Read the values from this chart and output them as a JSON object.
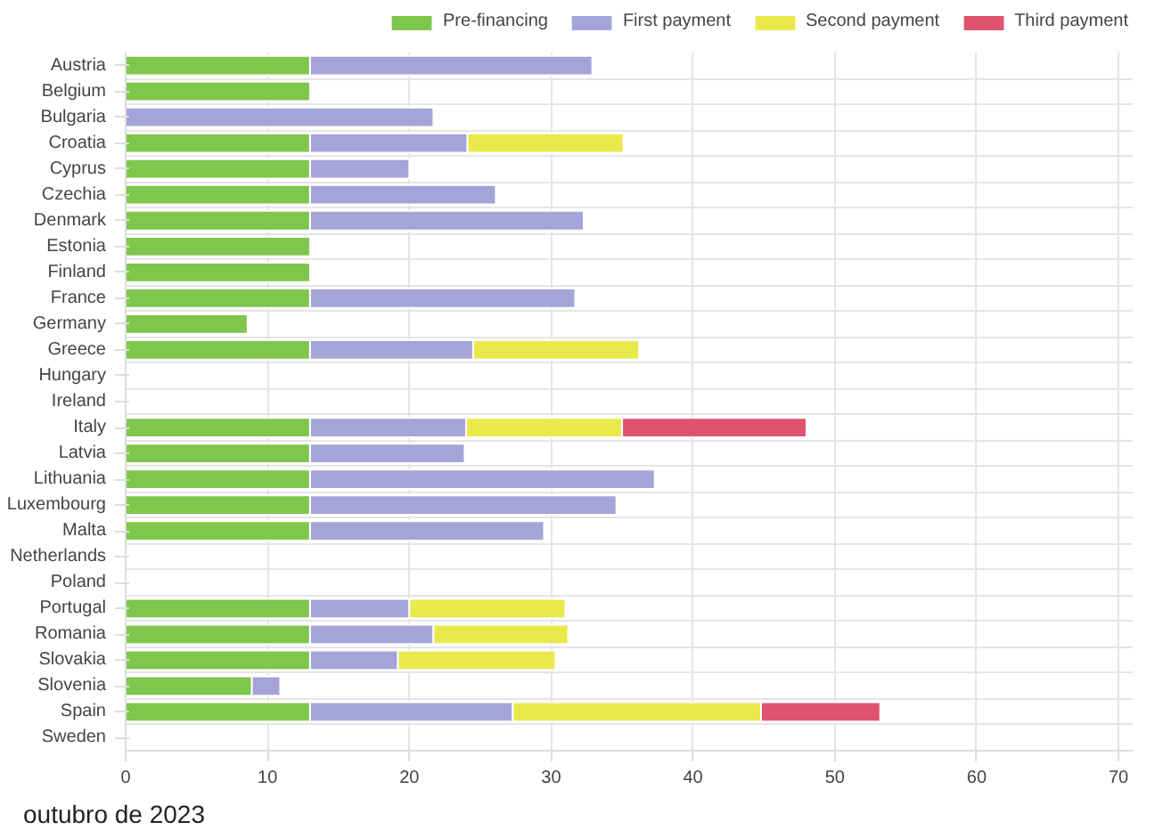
{
  "chart_data": {
    "type": "bar",
    "orientation": "horizontal",
    "stacked": true,
    "categories": [
      "Austria",
      "Belgium",
      "Bulgaria",
      "Croatia",
      "Cyprus",
      "Czechia",
      "Denmark",
      "Estonia",
      "Finland",
      "France",
      "Germany",
      "Greece",
      "Hungary",
      "Ireland",
      "Italy",
      "Latvia",
      "Lithuania",
      "Luxembourg",
      "Malta",
      "Netherlands",
      "Poland",
      "Portugal",
      "Romania",
      "Slovakia",
      "Slovenia",
      "Spain",
      "Sweden"
    ],
    "series": [
      {
        "name": "Pre-financing",
        "color": "#7ec64c",
        "values": [
          13,
          13,
          null,
          13,
          13,
          13,
          13,
          13,
          13,
          13,
          8.6,
          13,
          null,
          null,
          13,
          13,
          13,
          13,
          13,
          null,
          null,
          13,
          13,
          13,
          8.9,
          13,
          null
        ]
      },
      {
        "name": "First payment",
        "color": "#a4a4d8",
        "values": [
          19.9,
          null,
          21.7,
          11.1,
          7.0,
          13.1,
          19.3,
          null,
          null,
          18.7,
          null,
          11.5,
          null,
          null,
          11.0,
          10.9,
          24.3,
          21.6,
          16.5,
          null,
          null,
          7.0,
          8.7,
          6.2,
          2.0,
          14.3,
          null
        ]
      },
      {
        "name": "Second payment",
        "color": "#e9e94c",
        "values": [
          null,
          null,
          null,
          11.0,
          null,
          null,
          null,
          null,
          null,
          null,
          null,
          11.7,
          null,
          null,
          11.0,
          null,
          null,
          null,
          null,
          null,
          null,
          11.0,
          9.5,
          11.1,
          null,
          17.5,
          null
        ]
      },
      {
        "name": "Third payment",
        "color": "#e0536f",
        "values": [
          null,
          null,
          null,
          null,
          null,
          null,
          null,
          null,
          null,
          null,
          null,
          null,
          null,
          null,
          13.0,
          null,
          null,
          null,
          null,
          null,
          null,
          null,
          null,
          null,
          null,
          8.4,
          null
        ]
      }
    ],
    "xlim": [
      0,
      71
    ],
    "xticks": [
      0,
      10,
      20,
      30,
      40,
      50,
      60,
      70
    ],
    "grid": true,
    "legend": "top",
    "annotations": [
      "outubro de 2023"
    ]
  }
}
